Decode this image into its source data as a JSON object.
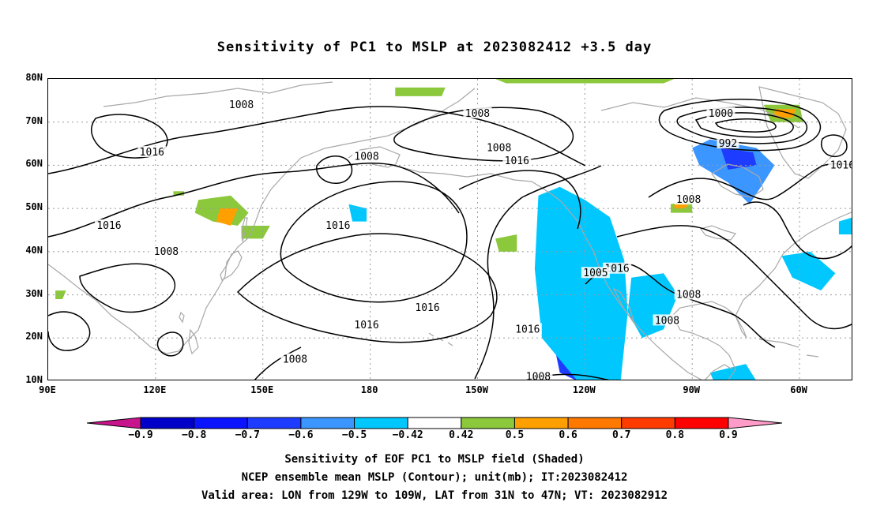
{
  "title": "Sensitivity of PC1 to MSLP at 2023082412 +3.5 day",
  "map": {
    "lat_ticks": [
      "80N",
      "70N",
      "60N",
      "50N",
      "40N",
      "30N",
      "20N",
      "10N"
    ],
    "lon_ticks": [
      "90E",
      "120E",
      "150E",
      "180",
      "150W",
      "120W",
      "90W",
      "60W"
    ],
    "lon_range": [
      90,
      315
    ],
    "lat_range": [
      10,
      80
    ],
    "colors": {
      "coast": "#a8a8a8",
      "contour": "#000000",
      "grid": "#9a9a9a"
    },
    "contour_labels": [
      {
        "text": "1008",
        "lon": 144,
        "lat": 74
      },
      {
        "text": "1008",
        "lon": 210,
        "lat": 72
      },
      {
        "text": "1016",
        "lon": 119,
        "lat": 63
      },
      {
        "text": "1008",
        "lon": 179,
        "lat": 62
      },
      {
        "text": "1008",
        "lon": 216,
        "lat": 64
      },
      {
        "text": "1016",
        "lon": 221,
        "lat": 61
      },
      {
        "text": "1000",
        "lon": 278,
        "lat": 72
      },
      {
        "text": "992",
        "lon": 280,
        "lat": 65
      },
      {
        "text": "1016",
        "lon": 312,
        "lat": 60
      },
      {
        "text": "1008",
        "lon": 269,
        "lat": 52
      },
      {
        "text": "1016",
        "lon": 107,
        "lat": 46
      },
      {
        "text": "1016",
        "lon": 171,
        "lat": 46
      },
      {
        "text": "1008",
        "lon": 123,
        "lat": 40
      },
      {
        "text": "1016",
        "lon": 249,
        "lat": 36
      },
      {
        "text": "1005",
        "lon": 243,
        "lat": 35
      },
      {
        "text": "1008",
        "lon": 269,
        "lat": 30
      },
      {
        "text": "1016",
        "lon": 196,
        "lat": 27
      },
      {
        "text": "1016",
        "lon": 179,
        "lat": 23
      },
      {
        "text": "1016",
        "lon": 224,
        "lat": 22
      },
      {
        "text": "1008",
        "lon": 263,
        "lat": 24
      },
      {
        "text": "1008",
        "lon": 159,
        "lat": 15
      },
      {
        "text": "1008",
        "lon": 227,
        "lat": 11
      }
    ],
    "shaded_regions": [
      {
        "level": -0.9,
        "color": "#0000c8",
        "points": [
          [
            234,
            46
          ],
          [
            240,
            45
          ],
          [
            241,
            35
          ],
          [
            243,
            22
          ],
          [
            240,
            13
          ],
          [
            236,
            12
          ],
          [
            233,
            25
          ],
          [
            232,
            38
          ]
        ]
      },
      {
        "level": -0.7,
        "color": "#1e3cff",
        "points": [
          [
            230,
            49
          ],
          [
            236,
            50
          ],
          [
            242,
            45
          ],
          [
            246,
            34
          ],
          [
            248,
            26
          ],
          [
            246,
            14
          ],
          [
            238,
            10
          ],
          [
            233,
            12
          ],
          [
            230,
            24
          ],
          [
            228,
            38
          ]
        ]
      },
      {
        "level": -0.5,
        "color": "#00c8ff",
        "points": [
          [
            227,
            53
          ],
          [
            233,
            55
          ],
          [
            240,
            52
          ],
          [
            247,
            48
          ],
          [
            251,
            38
          ],
          [
            252,
            26
          ],
          [
            250,
            10
          ],
          [
            238,
            10
          ],
          [
            228,
            20
          ],
          [
            226,
            36
          ]
        ]
      },
      {
        "level": -0.6,
        "color": "#3c96ff",
        "points": [
          [
            275,
            66
          ],
          [
            288,
            64
          ],
          [
            293,
            60
          ],
          [
            290,
            56
          ],
          [
            286,
            51
          ],
          [
            280,
            56
          ],
          [
            272,
            60
          ],
          [
            270,
            64
          ]
        ]
      },
      {
        "level": -0.7,
        "color": "#1e3cff",
        "points": [
          [
            278,
            64
          ],
          [
            287,
            63
          ],
          [
            288,
            60
          ],
          [
            280,
            59
          ]
        ]
      },
      {
        "level": -0.5,
        "color": "#00c8ff",
        "points": [
          [
            253,
            34
          ],
          [
            262,
            35
          ],
          [
            266,
            30
          ],
          [
            262,
            22
          ],
          [
            256,
            20
          ],
          [
            252,
            26
          ]
        ]
      },
      {
        "level": -0.5,
        "color": "#00c8ff",
        "points": [
          [
            295,
            39
          ],
          [
            303,
            40
          ],
          [
            310,
            35
          ],
          [
            306,
            31
          ],
          [
            298,
            34
          ]
        ]
      },
      {
        "level": -0.5,
        "color": "#00c8ff",
        "points": [
          [
            311,
            47
          ],
          [
            315,
            48
          ],
          [
            315,
            44
          ],
          [
            311,
            44
          ]
        ]
      },
      {
        "level": -0.5,
        "color": "#00c8ff",
        "points": [
          [
            174,
            51
          ],
          [
            179,
            50
          ],
          [
            179,
            47
          ],
          [
            175,
            47
          ]
        ]
      },
      {
        "level": -0.5,
        "color": "#00c8ff",
        "points": [
          [
            275,
            12
          ],
          [
            285,
            14
          ],
          [
            288,
            10
          ],
          [
            276,
            10
          ]
        ]
      },
      {
        "level": 0.42,
        "color": "#8cc83c",
        "points": [
          [
            132,
            52
          ],
          [
            141,
            53
          ],
          [
            146,
            49
          ],
          [
            143,
            46
          ],
          [
            136,
            47
          ],
          [
            131,
            49
          ]
        ]
      },
      {
        "level": 0.42,
        "color": "#8cc83c",
        "points": [
          [
            144,
            46
          ],
          [
            152,
            46
          ],
          [
            150,
            43
          ],
          [
            144,
            43
          ]
        ]
      },
      {
        "level": 0.6,
        "color": "#ffa000",
        "points": [
          [
            138,
            50
          ],
          [
            143,
            50
          ],
          [
            141,
            46
          ],
          [
            137,
            47
          ]
        ]
      },
      {
        "level": 0.42,
        "color": "#8cc83c",
        "points": [
          [
            215,
            43
          ],
          [
            221,
            44
          ],
          [
            221,
            40
          ],
          [
            216,
            40
          ]
        ]
      },
      {
        "level": 0.42,
        "color": "#8cc83c",
        "points": [
          [
            264,
            51
          ],
          [
            270,
            52
          ],
          [
            270,
            49
          ],
          [
            264,
            49
          ]
        ]
      },
      {
        "level": 0.6,
        "color": "#ffa000",
        "points": [
          [
            265,
            51
          ],
          [
            269,
            51
          ],
          [
            268,
            50
          ],
          [
            265,
            50
          ]
        ]
      },
      {
        "level": 0.42,
        "color": "#8cc83c",
        "points": [
          [
            290,
            74
          ],
          [
            300,
            74
          ],
          [
            301,
            70
          ],
          [
            292,
            70
          ]
        ]
      },
      {
        "level": 0.6,
        "color": "#ffa000",
        "points": [
          [
            293,
            73
          ],
          [
            299,
            73
          ],
          [
            298,
            71
          ],
          [
            293,
            71
          ]
        ]
      },
      {
        "level": 0.42,
        "color": "#8cc83c",
        "points": [
          [
            187,
            78
          ],
          [
            201,
            78
          ],
          [
            200,
            76
          ],
          [
            187,
            76
          ]
        ]
      },
      {
        "level": 0.42,
        "color": "#8cc83c",
        "points": [
          [
            215,
            80
          ],
          [
            265,
            80
          ],
          [
            262,
            79
          ],
          [
            218,
            79
          ]
        ]
      },
      {
        "level": 0.42,
        "color": "#8cc83c",
        "points": [
          [
            125,
            54
          ],
          [
            128,
            54
          ],
          [
            128,
            53
          ],
          [
            125,
            53
          ]
        ]
      },
      {
        "level": 0.42,
        "color": "#8cc83c",
        "points": [
          [
            92,
            31
          ],
          [
            95,
            31
          ],
          [
            94,
            29
          ],
          [
            92,
            29
          ]
        ]
      }
    ]
  },
  "colorbar": {
    "boxes": [
      "#0000c8",
      "#0a14ff",
      "#1e3cff",
      "#3c96ff",
      "#00c8ff",
      "#ffffff",
      "#8cc83c",
      "#ffa000",
      "#ff7800",
      "#ff3c00",
      "#ff0000"
    ],
    "low_arrow_color": "#c8148c",
    "high_arrow_color": "#ff9bc8",
    "tick_labels": [
      "−0.9",
      "−0.8",
      "−0.7",
      "−0.6",
      "−0.5",
      "−0.42",
      "0.42",
      "0.5",
      "0.6",
      "0.7",
      "0.8",
      "0.9"
    ]
  },
  "footer": {
    "line1": "Sensitivity of EOF PC1 to MSLP field (Shaded)",
    "line2": "NCEP ensemble mean MSLP (Contour); unit(mb); IT:2023082412",
    "line3": "Valid area: LON from 129W to 109W, LAT from 31N to 47N; VT: 2023082912"
  }
}
